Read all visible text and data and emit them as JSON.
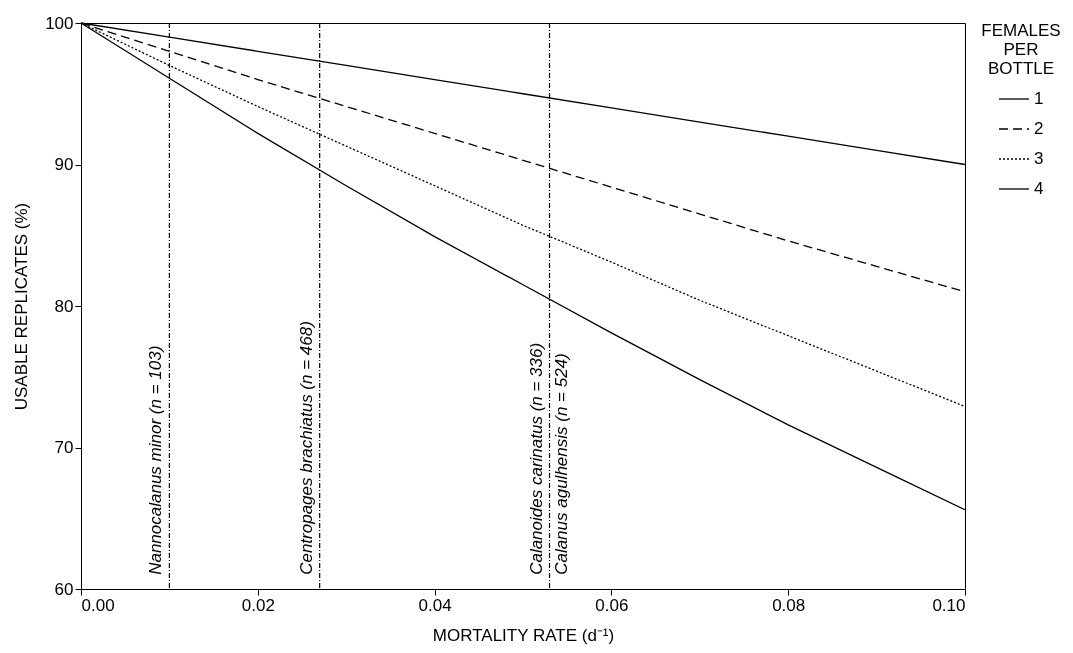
{
  "chart_data": {
    "type": "line",
    "xlabel": "MORTALITY RATE (d⁻¹)",
    "ylabel": "USABLE REPLICATES (%)",
    "legend_title": "FEMALES PER BOTTLE",
    "x": [
      0,
      0.01,
      0.02,
      0.03,
      0.04,
      0.05,
      0.06,
      0.07,
      0.08,
      0.09,
      0.1
    ],
    "series": [
      {
        "name": "1",
        "color": "#000000",
        "line_style": "solid",
        "values": [
          100,
          99.0,
          98.0,
          97.0,
          96.0,
          95.0,
          94.0,
          93.0,
          92.0,
          91.0,
          90.0
        ]
      },
      {
        "name": "2",
        "color": "#000000",
        "line_style": "dashed",
        "values": [
          100,
          98.0,
          96.0,
          94.1,
          92.2,
          90.3,
          88.4,
          86.5,
          84.6,
          82.8,
          81.0
        ]
      },
      {
        "name": "3",
        "color": "#000000",
        "line_style": "dotted",
        "values": [
          100,
          97.0,
          94.1,
          91.3,
          88.5,
          85.7,
          83.1,
          80.4,
          77.9,
          75.4,
          72.9
        ]
      },
      {
        "name": "4",
        "color": "#000000",
        "line_style": "solid",
        "values": [
          100,
          96.1,
          92.2,
          88.5,
          84.9,
          81.5,
          78.1,
          74.8,
          71.6,
          68.6,
          65.6
        ]
      }
    ],
    "xlim": [
      0,
      0.1
    ],
    "ylim": [
      60,
      100
    ],
    "xticks": [
      {
        "value": 0,
        "label": "0.00"
      },
      {
        "value": 0.02,
        "label": "0.02"
      },
      {
        "value": 0.04,
        "label": "0.04"
      },
      {
        "value": 0.06,
        "label": "0.06"
      },
      {
        "value": 0.08,
        "label": "0.08"
      },
      {
        "value": 0.1,
        "label": "0.10"
      }
    ],
    "yticks": [
      60,
      70,
      80,
      90,
      100
    ],
    "ref_lines": [
      {
        "axis": "x",
        "value": 0.01,
        "color": "#000000",
        "line_style": "dashed"
      },
      {
        "axis": "x",
        "value": 0.027,
        "color": "#000000",
        "line_style": "dashed"
      },
      {
        "axis": "x",
        "value": 0.053,
        "color": "#000000",
        "line_style": "dashed"
      }
    ],
    "annotations": [
      {
        "text": "Nannocalanus minor (n = 103)",
        "x": 0.01,
        "y": 61
      },
      {
        "text": "Centropages brachiatus (n = 468)",
        "x": 0.027,
        "y": 61
      },
      {
        "text": "Calanoides carinatus (n = 336)",
        "x": 0.053,
        "y": 61
      },
      {
        "text": "Calanus agulhensis (n = 524)",
        "x": 0.053,
        "y": 61
      }
    ],
    "grid": false,
    "legend": "right",
    "marker": "none"
  }
}
